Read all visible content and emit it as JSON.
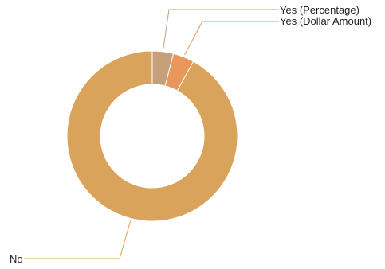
{
  "chart_data": {
    "type": "pie",
    "variant": "donut",
    "categories": [
      "Yes (Percentage)",
      "Yes (Dollar Amount)",
      "No"
    ],
    "values": [
      4,
      4,
      92
    ],
    "colors": [
      "#c6a07a",
      "#e8965a",
      "#d9a35b"
    ],
    "legend": "none"
  }
}
